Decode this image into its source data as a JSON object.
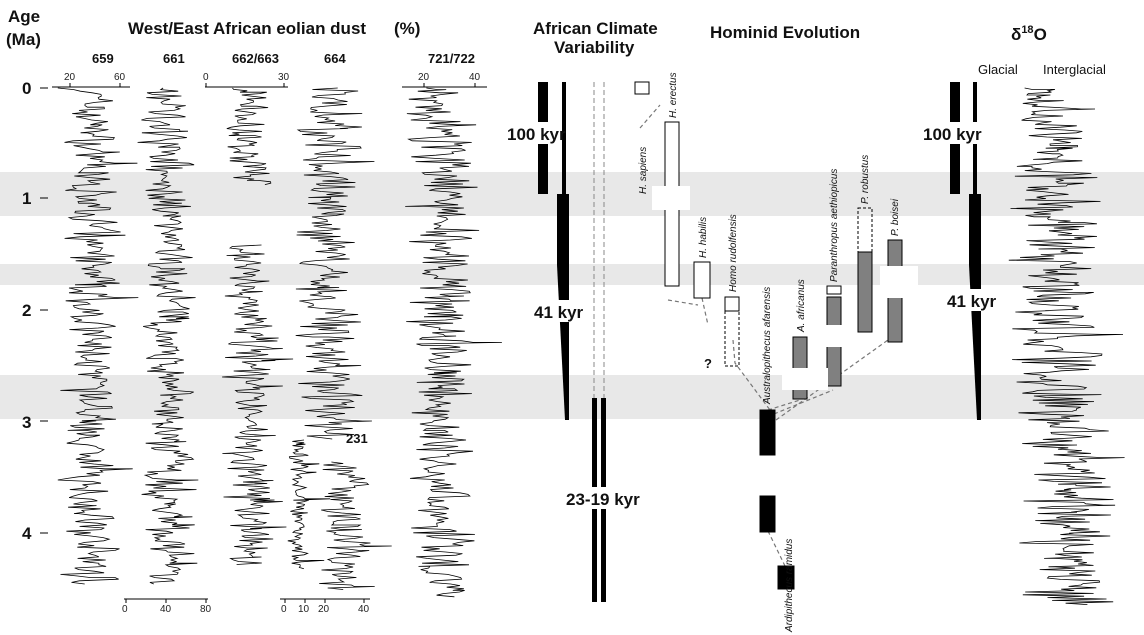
{
  "header": {
    "age_label_line1": "Age",
    "age_label_line2": "(Ma)",
    "dust_title": "West/East African eolian dust",
    "dust_unit": "(%)",
    "climate_title_line1": "African Climate",
    "climate_title_line2": "Variability",
    "hominid_title": "Hominid Evolution",
    "d18o_title_prefix": "δ",
    "d18o_title_sup": "18",
    "d18o_title_suffix": "O"
  },
  "age_axis": {
    "ticks": [
      "0",
      "1",
      "2",
      "3",
      "4"
    ],
    "min": 0,
    "max": 4.6
  },
  "dust_sites": {
    "s659": {
      "name": "659",
      "tick_a": "20",
      "tick_b": "60"
    },
    "s661": {
      "name": "661",
      "tick_a": "40",
      "tick_b": "80",
      "tick_c": "0"
    },
    "s662": {
      "name": "662/663",
      "tick_a": "0",
      "tick_b": "30"
    },
    "s664": {
      "name": "664",
      "tick_a": "0",
      "tick_b": "10",
      "tick_c": "20",
      "tick_d": "40"
    },
    "s721": {
      "name": "721/722",
      "tick_a": "20",
      "tick_b": "40"
    },
    "annotation_231": "231"
  },
  "climate": {
    "cycle_100": "100 kyr",
    "cycle_41": "41 kyr",
    "cycle_23": "23-19 kyr"
  },
  "hominids": {
    "h_sapiens": "H. sapiens",
    "h_erectus": "H. erectus",
    "h_habilis": "H. habilis",
    "homo_rudolfensis": "Homo rudolfensis",
    "australopithecus_afarensis": "Australopithecus afarensis",
    "a_africanus": "A. africanus",
    "paranthropus_aethiopicus": "Paranthropus aethiopicus",
    "p_robustus": "P. robustus",
    "p_boisei": "P. boisei",
    "ardipithecus_ramidus": "Ardipithecus ramidus",
    "question": "?"
  },
  "d18o": {
    "glacial": "Glacial",
    "interglacial": "Interglacial",
    "cycle_100": "100 kyr",
    "cycle_41": "41 kyr"
  },
  "colors": {
    "band": "#e8e8e8",
    "ink": "#000000",
    "gray_bar": "#808080",
    "dash": "#888888"
  }
}
